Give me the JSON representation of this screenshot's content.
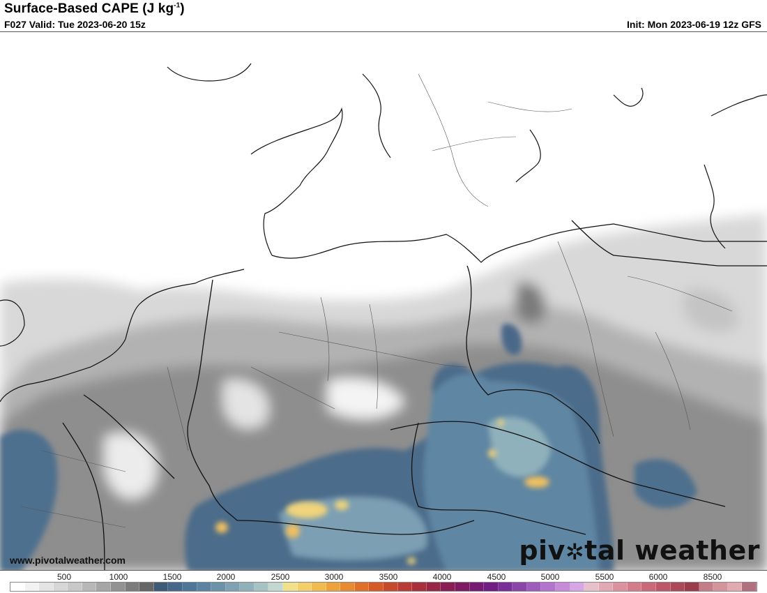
{
  "header": {
    "title_main": "Surface-Based CAPE (J kg",
    "title_sup": "-1",
    "title_close": ")",
    "valid": "F027 Valid: Tue 2023-06-20 15z",
    "init": "Init: Mon 2023-06-19 12z GFS"
  },
  "map": {
    "website": "www.pivotalweather.com",
    "brand_left": "piv",
    "brand_sun": "✲",
    "brand_right": "tal weather"
  },
  "legend": {
    "ticks": [
      {
        "label": "500",
        "value": 500
      },
      {
        "label": "1000",
        "value": 1000
      },
      {
        "label": "1500",
        "value": 1500
      },
      {
        "label": "2000",
        "value": 2000
      },
      {
        "label": "2500",
        "value": 2500
      },
      {
        "label": "3000",
        "value": 3000
      },
      {
        "label": "3500",
        "value": 3500
      },
      {
        "label": "4000",
        "value": 4000
      },
      {
        "label": "4500",
        "value": 4500
      },
      {
        "label": "5000",
        "value": 5000
      },
      {
        "label": "5500",
        "value": 5500
      },
      {
        "label": "6000",
        "value": 6000
      },
      {
        "label": "8500",
        "value": 8500
      }
    ],
    "colors": [
      "#ffffff",
      "#f2f2f2",
      "#e4e4e4",
      "#d6d6d6",
      "#c8c8c8",
      "#b8b8b8",
      "#a6a6a6",
      "#929292",
      "#7c7c7c",
      "#666666",
      "#3e5a78",
      "#46678a",
      "#4f7597",
      "#5c83a1",
      "#6c92a9",
      "#7ea2b1",
      "#90b1b9",
      "#a6c2c3",
      "#c3d6cf",
      "#f0e08a",
      "#f3cf6a",
      "#f2bb50",
      "#eea23c",
      "#e88a30",
      "#e07028",
      "#d65a26",
      "#c84a2c",
      "#b83c34",
      "#a8303c",
      "#982646",
      "#8a1e54",
      "#7e1a64",
      "#761a74",
      "#701e84",
      "#7a2e98",
      "#8a44aa",
      "#9e5cbc",
      "#b274cc",
      "#c68cda",
      "#d8a6e4",
      "#e8c0cc",
      "#e2a8b4",
      "#dc929e",
      "#d47c8a",
      "#ca6878",
      "#bc5668",
      "#ac4858",
      "#9c3c4a",
      "#c47c88",
      "#d4949c",
      "#e0aab0",
      "#b07080"
    ]
  }
}
